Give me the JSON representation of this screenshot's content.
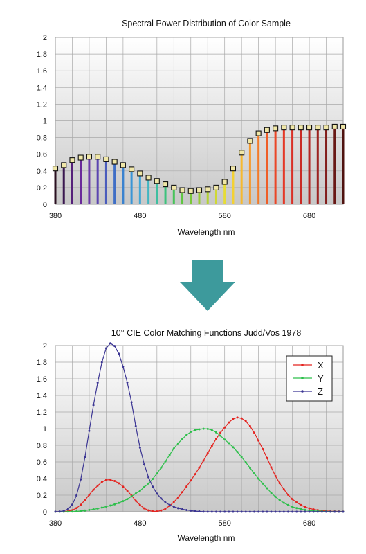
{
  "chart_data": [
    {
      "type": "bar",
      "title": "Spectral Power Distribution of Color Sample",
      "xlabel": "Wavelength nm",
      "ylabel": "",
      "xlim": [
        380,
        720
      ],
      "ylim": [
        0,
        2
      ],
      "yticks": [
        "0",
        "0.2",
        "0.4",
        "0.6",
        "0.8",
        "1",
        "1.2",
        "1.4",
        "1.6",
        "1.8",
        "2"
      ],
      "xticks": [
        "380",
        "480",
        "580",
        "680"
      ],
      "x": [
        380,
        390,
        400,
        410,
        420,
        430,
        440,
        450,
        460,
        470,
        480,
        490,
        500,
        510,
        520,
        530,
        540,
        550,
        560,
        570,
        580,
        590,
        600,
        610,
        620,
        630,
        640,
        650,
        660,
        670,
        680,
        690,
        700,
        710,
        720
      ],
      "values": [
        0.43,
        0.47,
        0.53,
        0.56,
        0.57,
        0.57,
        0.54,
        0.51,
        0.47,
        0.42,
        0.37,
        0.32,
        0.28,
        0.24,
        0.2,
        0.17,
        0.16,
        0.17,
        0.18,
        0.2,
        0.27,
        0.43,
        0.62,
        0.76,
        0.85,
        0.89,
        0.91,
        0.92,
        0.92,
        0.92,
        0.92,
        0.92,
        0.92,
        0.93,
        0.93
      ],
      "bar_colors": [
        "#2a1020",
        "#3a1850",
        "#55207a",
        "#6a2a9a",
        "#6b3aa8",
        "#5b45b0",
        "#4a5cbc",
        "#3f6ec6",
        "#3a82cf",
        "#3a95d6",
        "#3fa7d6",
        "#42b6c2",
        "#3fbfa0",
        "#3cc27c",
        "#47c35a",
        "#5fc640",
        "#7bc83a",
        "#98cc36",
        "#b4d235",
        "#cfd834",
        "#e6dc35",
        "#f3d133",
        "#f6b92f",
        "#f69a2c",
        "#f37b2a",
        "#ef5e28",
        "#ea4627",
        "#e43826",
        "#d93026",
        "#c92b25",
        "#b32623",
        "#9c2220",
        "#821d1b",
        "#681815",
        "#4f120f"
      ],
      "grid": true
    },
    {
      "type": "line",
      "title": "10° CIE Color Matching Functions Judd/Vos 1978",
      "xlabel": "Wavelength nm",
      "ylabel": "",
      "xlim": [
        380,
        720
      ],
      "ylim": [
        0,
        2
      ],
      "yticks": [
        "0",
        "0.2",
        "0.4",
        "0.6",
        "0.8",
        "1",
        "1.2",
        "1.4",
        "1.6",
        "1.8",
        "2"
      ],
      "xticks": [
        "380",
        "480",
        "580",
        "680"
      ],
      "legend_position": "top-right",
      "grid": true,
      "x": [
        380,
        385,
        390,
        395,
        400,
        405,
        410,
        415,
        420,
        425,
        430,
        435,
        440,
        445,
        450,
        455,
        460,
        465,
        470,
        475,
        480,
        485,
        490,
        495,
        500,
        505,
        510,
        515,
        520,
        525,
        530,
        535,
        540,
        545,
        550,
        555,
        560,
        565,
        570,
        575,
        580,
        585,
        590,
        595,
        600,
        605,
        610,
        615,
        620,
        625,
        630,
        635,
        640,
        645,
        650,
        655,
        660,
        665,
        670,
        675,
        680,
        685,
        690,
        695,
        700,
        705,
        710,
        715,
        720
      ],
      "series": [
        {
          "name": "X",
          "color": "#e4231f",
          "values": [
            0.0002,
            0.0007,
            0.0024,
            0.0072,
            0.0191,
            0.0434,
            0.0847,
            0.1406,
            0.2045,
            0.2647,
            0.3147,
            0.3577,
            0.3837,
            0.3867,
            0.3707,
            0.343,
            0.3023,
            0.2541,
            0.1956,
            0.1323,
            0.0805,
            0.0411,
            0.0162,
            0.0051,
            0.0038,
            0.0154,
            0.0375,
            0.0714,
            0.1177,
            0.173,
            0.2365,
            0.3042,
            0.3768,
            0.4516,
            0.5298,
            0.6161,
            0.7052,
            0.7938,
            0.8787,
            0.9512,
            1.0142,
            1.0743,
            1.1185,
            1.1343,
            1.124,
            1.0891,
            1.0305,
            0.9507,
            0.8563,
            0.7549,
            0.6475,
            0.5351,
            0.4316,
            0.3437,
            0.2683,
            0.2043,
            0.1526,
            0.1122,
            0.0813,
            0.0579,
            0.0409,
            0.0286,
            0.0199,
            0.0138,
            0.0096,
            0.0066,
            0.0046,
            0.0031,
            0.0022
          ]
        },
        {
          "name": "Y",
          "color": "#2cbf4a",
          "values": [
            0.0,
            0.0001,
            0.0003,
            0.0008,
            0.002,
            0.0045,
            0.0088,
            0.0145,
            0.0214,
            0.0295,
            0.0387,
            0.0496,
            0.0621,
            0.0747,
            0.0895,
            0.1063,
            0.1282,
            0.1528,
            0.1852,
            0.2199,
            0.2536,
            0.2977,
            0.3391,
            0.3954,
            0.4608,
            0.5314,
            0.6067,
            0.6857,
            0.7618,
            0.8233,
            0.8752,
            0.9238,
            0.962,
            0.9822,
            0.9918,
            0.9991,
            0.9973,
            0.9824,
            0.9555,
            0.9152,
            0.8689,
            0.8256,
            0.7774,
            0.7204,
            0.6583,
            0.5939,
            0.528,
            0.4618,
            0.3981,
            0.3396,
            0.2835,
            0.2283,
            0.1798,
            0.1402,
            0.1076,
            0.0812,
            0.0603,
            0.0441,
            0.0318,
            0.0226,
            0.0159,
            0.0111,
            0.0077,
            0.0054,
            0.0037,
            0.0026,
            0.0018,
            0.0012,
            0.0008
          ]
        },
        {
          "name": "Z",
          "color": "#3b3593",
          "values": [
            0.0007,
            0.0029,
            0.0105,
            0.0323,
            0.086,
            0.1971,
            0.3894,
            0.6568,
            0.9725,
            1.2825,
            1.5535,
            1.7985,
            1.9673,
            2.0273,
            1.9948,
            1.9007,
            1.7454,
            1.5549,
            1.3176,
            1.0302,
            0.7721,
            0.5701,
            0.4153,
            0.3024,
            0.2185,
            0.1592,
            0.112,
            0.0822,
            0.0607,
            0.0431,
            0.0305,
            0.0206,
            0.0137,
            0.0079,
            0.004,
            0.0011,
            0.0,
            0.0,
            0.0,
            0.0,
            0.0,
            0.0,
            0.0,
            0.0,
            0.0,
            0.0,
            0.0,
            0.0,
            0.0,
            0.0,
            0.0,
            0.0,
            0.0,
            0.0,
            0.0,
            0.0,
            0.0,
            0.0,
            0.0,
            0.0,
            0.0,
            0.0,
            0.0,
            0.0,
            0.0,
            0.0,
            0.0,
            0.0,
            0.0
          ]
        }
      ]
    }
  ],
  "arrow": {
    "color": "#3d9a9c",
    "icon": "down-arrow-icon"
  }
}
